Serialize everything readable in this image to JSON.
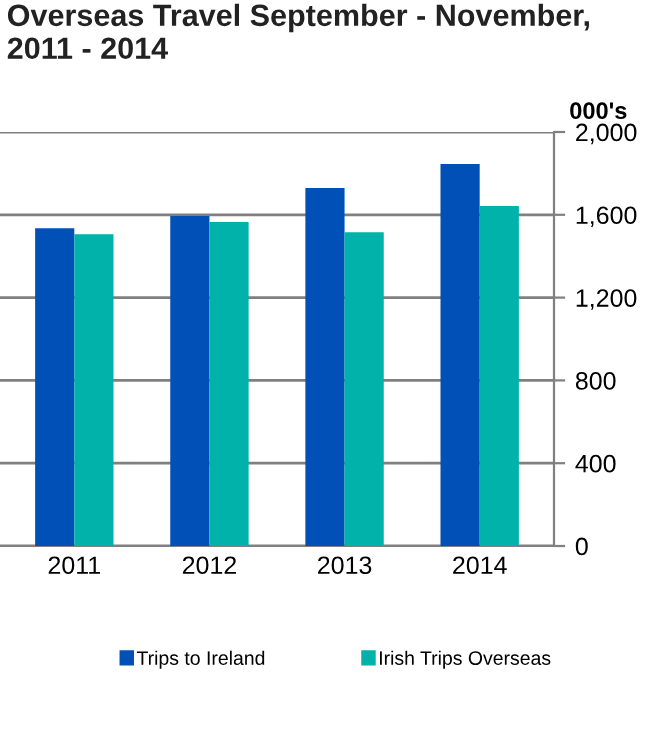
{
  "chart_data": {
    "type": "bar",
    "title": "Overseas Travel September - November,\n2011 - 2014",
    "ylabel": "000's",
    "categories": [
      "2011",
      "2012",
      "2013",
      "2014"
    ],
    "series": [
      {
        "name": "Trips to Ireland",
        "color": "#0050b8",
        "values": [
          1535,
          1594,
          1729,
          1845
        ]
      },
      {
        "name": "Irish Trips Overseas",
        "color": "#00b2a9",
        "values": [
          1506,
          1565,
          1516,
          1642
        ]
      }
    ],
    "ylim": [
      0,
      2000
    ],
    "yticks": [
      {
        "value": 0,
        "label": "0"
      },
      {
        "value": 400,
        "label": "400"
      },
      {
        "value": 800,
        "label": "800"
      },
      {
        "value": 1200,
        "label": "1,200"
      },
      {
        "value": 1600,
        "label": "1,600"
      },
      {
        "value": 2000,
        "label": "2,000"
      }
    ],
    "grid": "y",
    "legend": "bottom"
  }
}
